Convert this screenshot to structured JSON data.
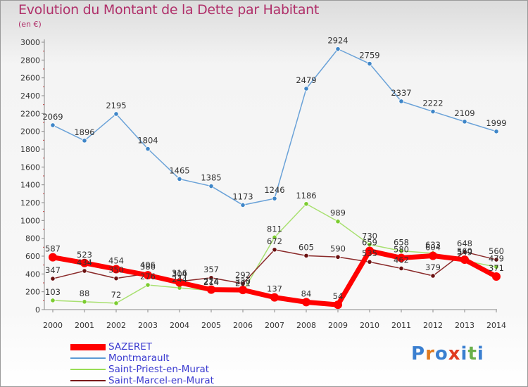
{
  "header": {
    "title": "Evolution du Montant de la Dette par Habitant",
    "subtitle": "(en €)"
  },
  "logo": {
    "text": "Proxiti",
    "colors": [
      "#3a7fd0",
      "#e07a20",
      "#3a7fd0",
      "#e03a20",
      "#3a7fd0",
      "#6ab04c",
      "#3a7fd0"
    ]
  },
  "chart_data": {
    "type": "line",
    "title": "Evolution du Montant de la Dette par Habitant",
    "subtitle": "(en €)",
    "xlabel": "",
    "ylabel": "",
    "ylim": [
      0,
      3000
    ],
    "yticks": [
      0,
      200,
      400,
      600,
      800,
      1000,
      1200,
      1400,
      1600,
      1800,
      2000,
      2200,
      2400,
      2600,
      2800,
      3000
    ],
    "x": [
      "2000",
      "2001",
      "2002",
      "2003",
      "2004",
      "2005",
      "2006",
      "2007",
      "2008",
      "2009",
      "2010",
      "2011",
      "2012",
      "2013",
      "2014"
    ],
    "grid": false,
    "legend_position": "bottom",
    "series": [
      {
        "name": "SAZERET",
        "color": "#ff0000",
        "values": [
          587,
          523,
          454,
          386,
          304,
          224,
          220,
          137,
          84,
          54,
          659,
          580,
          604,
          560,
          371
        ]
      },
      {
        "name": "Montmarault",
        "color": "#5b9bd5",
        "values": [
          2069,
          1896,
          2195,
          1804,
          1465,
          1385,
          1173,
          1246,
          2479,
          2924,
          2759,
          2337,
          2222,
          2109,
          1999
        ]
      },
      {
        "name": "Saint-Priest-en-Murat",
        "color": "#99dd55",
        "values": [
          103,
          88,
          72,
          276,
          244,
          214,
          201,
          811,
          1186,
          989,
          730,
          658,
          633,
          549,
          479
        ]
      },
      {
        "name": "Saint-Marcel-en-Murat",
        "color": "#7a1a1a",
        "values": [
          347,
          434,
          350,
          406,
          316,
          357,
          292,
          672,
          605,
          590,
          535,
          462,
          379,
          648,
          560
        ]
      }
    ],
    "data_labels": [
      [
        "587",
        "523",
        "454",
        "386",
        "304",
        "224",
        "220",
        "137",
        "84",
        "54",
        "659",
        "580",
        "604",
        "560",
        "371"
      ],
      [
        "2069",
        "1896",
        "2195",
        "1804",
        "1465",
        "1385",
        "1173",
        "1246",
        "2479",
        "2924",
        "2759",
        "2337",
        "2222",
        "2109",
        "1999"
      ],
      [
        "103",
        "88",
        "72",
        "276",
        "244",
        "214",
        "201",
        "811",
        "1186",
        "989",
        "730",
        "658",
        "633",
        "549",
        "479"
      ],
      [
        "347",
        "434",
        "350",
        "406",
        "316",
        "357",
        "292",
        "672",
        "605",
        "590",
        "535",
        "462",
        "379",
        "648",
        "560"
      ]
    ]
  }
}
